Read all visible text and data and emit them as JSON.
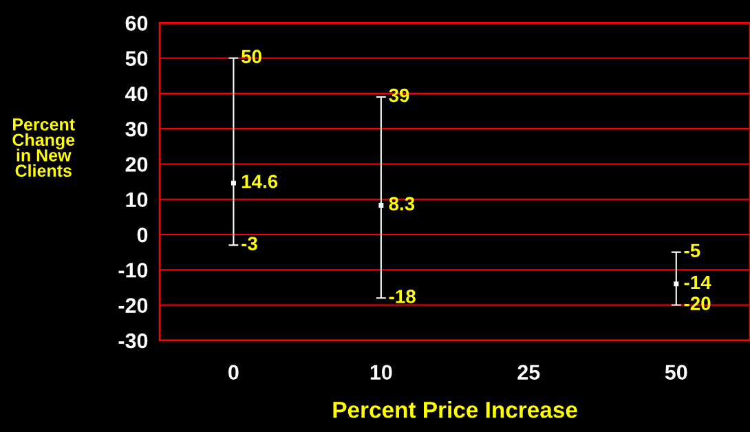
{
  "chart_data": {
    "type": "scatter",
    "xlabel": "Percent Price Increase",
    "ylabel": "Percent\nChange\nin New\nClients",
    "categories": [
      "0",
      "10",
      "25",
      "50"
    ],
    "series": [
      {
        "color": "#ffffff",
        "values": [
          14.6,
          8.3,
          null,
          -14
        ],
        "errors": [
          [
            -3,
            50
          ],
          [
            -18,
            39
          ],
          null,
          [
            -20,
            -5
          ]
        ],
        "value_labels": [
          "14.6",
          "8.3",
          null,
          "-14"
        ]
      }
    ],
    "annotations": [
      {
        "text": "50",
        "x": "0",
        "y": 50
      },
      {
        "text": "-3",
        "x": "0",
        "y": -3
      },
      {
        "text": "39",
        "x": "10",
        "y": 39
      },
      {
        "text": "-18",
        "x": "10",
        "y": -18
      },
      {
        "text": "-5",
        "x": "50",
        "y": -5
      },
      {
        "text": "-20",
        "x": "50",
        "y": -20
      }
    ],
    "ylim": [
      -30,
      60
    ],
    "yticks": [
      -30,
      -20,
      -10,
      0,
      10,
      20,
      30,
      40,
      50,
      60
    ],
    "grid": "y"
  }
}
